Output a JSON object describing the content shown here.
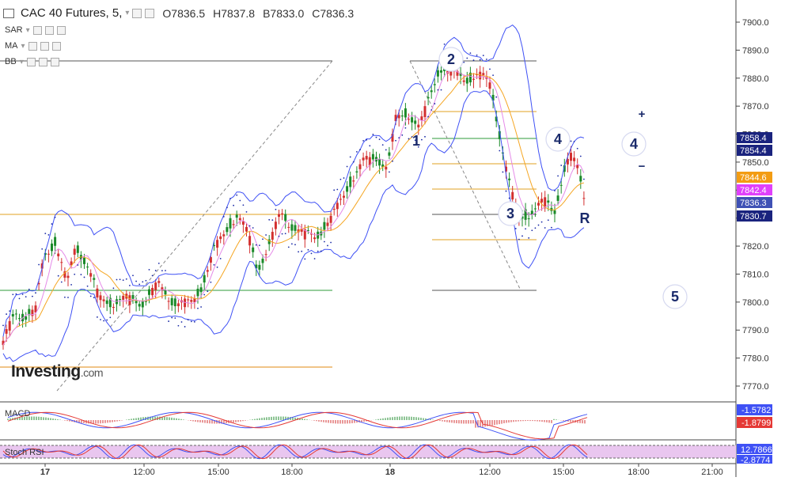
{
  "header": {
    "title": "CAC 40 Futures, 5,",
    "open": "O7836.5",
    "high": "H7837.8",
    "low": "B7833.0",
    "close": "C7836.3"
  },
  "indicators": [
    {
      "label": "SAR"
    },
    {
      "label": "MA"
    },
    {
      "label": "BB"
    }
  ],
  "logo": {
    "text": "Investing",
    "domain": ".com"
  },
  "price_axis": {
    "ticks": [
      "7900.0",
      "7890.0",
      "7880.0",
      "7870.0",
      "7860.0",
      "7850.0",
      "7840.0",
      "7830.0",
      "7820.0",
      "7810.0",
      "7800.0",
      "7790.0",
      "7780.0",
      "7770.0"
    ],
    "badges": [
      {
        "text": "7858.4",
        "color": "#1a237e"
      },
      {
        "text": "7854.4",
        "color": "#1a237e"
      },
      {
        "text": "7844.6",
        "color": "#f39c12"
      },
      {
        "text": "7842.4",
        "color": "#e040fb"
      },
      {
        "text": "7836.3",
        "color": "#3f51b5"
      },
      {
        "text": "7830.7",
        "color": "#1a237e"
      }
    ]
  },
  "time_axis": [
    "17",
    "12:00",
    "15:00",
    "18:00",
    "18",
    "12:00",
    "15:00",
    "18:00",
    "21:00"
  ],
  "wave_labels": [
    "1",
    "2",
    "3",
    "4",
    "5",
    "R",
    "4"
  ],
  "zoom": {
    "plus": "+",
    "minus": "−"
  },
  "macd": {
    "label": "MACD",
    "values": [
      "-1.5782",
      "-1.8799"
    ]
  },
  "stoch_rsi": {
    "label": "Stoch RSI",
    "values": [
      "12.7866",
      "-2.8774"
    ]
  },
  "colors": {
    "bull": "#1b8a2a",
    "bear": "#d32f2f",
    "band": "#3f51f5",
    "ma": "#f5a623",
    "sar": "#1a2aa6"
  }
}
